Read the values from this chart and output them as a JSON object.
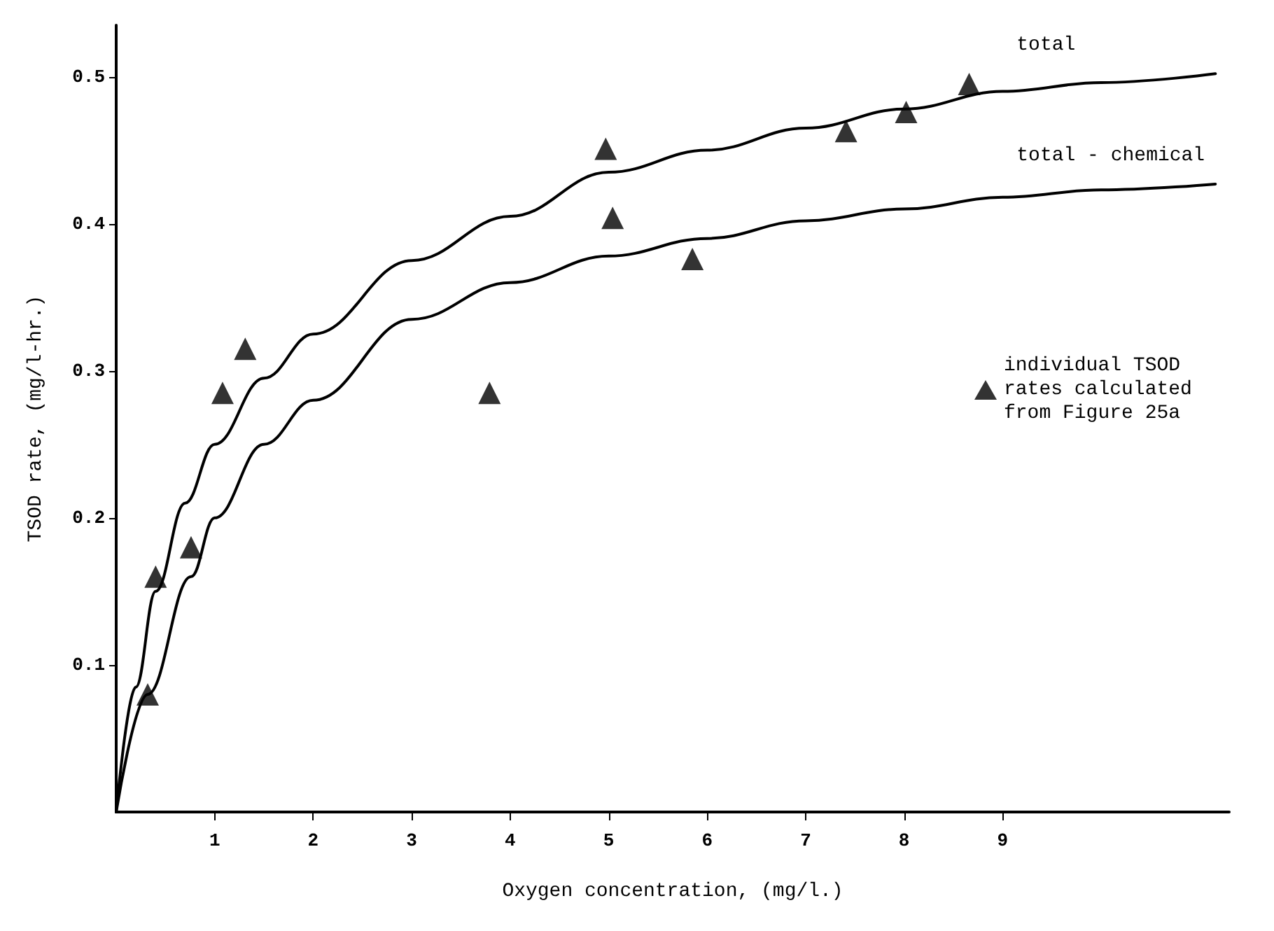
{
  "chart_data": {
    "type": "line",
    "xlabel": "Oxygen concentration, (mg/l.)",
    "ylabel": "TSOD rate, (mg/l-hr.)",
    "xlim": [
      0,
      11.3
    ],
    "xticks": [
      1,
      2,
      3,
      4,
      5,
      6,
      7,
      8,
      9
    ],
    "ylim": [
      0,
      0.535
    ],
    "yticks": [
      0.1,
      0.2,
      0.3,
      0.4,
      0.5
    ],
    "grid": false,
    "legend": "right",
    "series": [
      {
        "name": "total",
        "color": "#000000",
        "marker": "none",
        "x": [
          0,
          0.2,
          0.4,
          0.7,
          1,
          1.5,
          2,
          3,
          4,
          5,
          6,
          7,
          8,
          9,
          10,
          11.16
        ],
        "values": [
          0,
          0.085,
          0.15,
          0.21,
          0.25,
          0.295,
          0.325,
          0.375,
          0.405,
          0.435,
          0.45,
          0.465,
          0.478,
          0.49,
          0.496,
          0.502
        ]
      },
      {
        "name": "total - chemical",
        "color": "#000000",
        "marker": "none",
        "x": [
          0,
          0.32,
          0.76,
          1,
          1.5,
          2,
          3,
          4,
          5,
          6,
          7,
          8,
          9,
          10,
          11.16
        ],
        "values": [
          0,
          0.08,
          0.16,
          0.2,
          0.25,
          0.28,
          0.335,
          0.36,
          0.378,
          0.39,
          0.402,
          0.41,
          0.418,
          0.423,
          0.427
        ]
      },
      {
        "name": "individual TSOD rates calculated from Figure 25a",
        "type": "scatter",
        "color": "#000000",
        "marker": "triangle",
        "x": [
          0.32,
          0.4,
          0.76,
          1.08,
          1.31,
          3.79,
          4.97,
          5.04,
          5.85,
          7.41,
          8.02,
          8.66
        ],
        "values": [
          0.08,
          0.16,
          0.18,
          0.285,
          0.315,
          0.285,
          0.451,
          0.404,
          0.376,
          0.463,
          0.476,
          0.495
        ]
      }
    ]
  }
}
